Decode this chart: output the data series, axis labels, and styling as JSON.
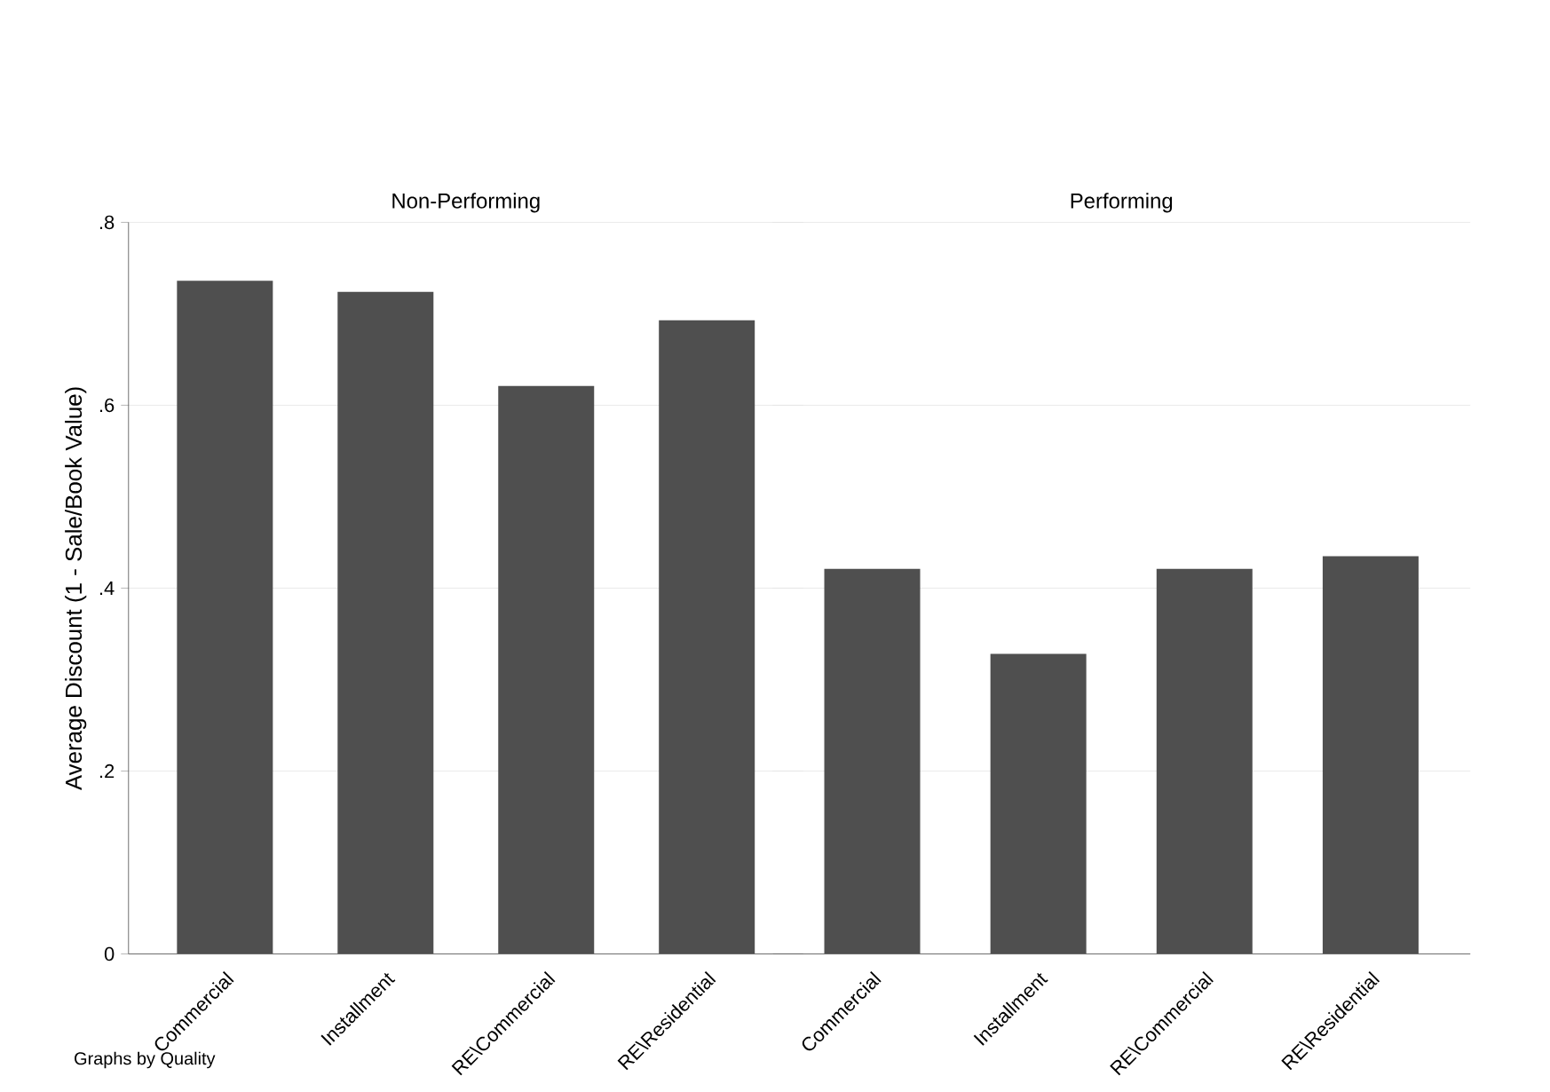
{
  "chart_data": [
    {
      "type": "bar",
      "title": "Non-Performing",
      "ylabel": "Average Discount (1 - Sale/Book Value)",
      "categories": [
        "Commercial",
        "Installment",
        "RE\\Commercial",
        "RE\\Residential"
      ],
      "values": [
        0.736,
        0.724,
        0.621,
        0.693
      ],
      "color": "#4f4f4f",
      "ylim": [
        0,
        0.8
      ],
      "yticks": [
        0,
        {
          "value": 0.2,
          "label": ".2"
        },
        {
          "value": 0.4,
          "label": ".4"
        },
        {
          "value": 0.6,
          "label": ".6"
        },
        {
          "value": 0.8,
          "label": ".8"
        }
      ],
      "grid": "y",
      "annotations": [
        "Graphs by Quality"
      ]
    },
    {
      "type": "bar",
      "title": "Performing",
      "categories": [
        "Commercial",
        "Installment",
        "RE\\Commercial",
        "RE\\Residential"
      ],
      "values": [
        0.421,
        0.328,
        0.421,
        0.435
      ],
      "color": "#4f4f4f",
      "ylim": [
        0,
        0.8
      ],
      "yticks": [
        0,
        0.2,
        0.4,
        0.6,
        0.8
      ],
      "grid": "y",
      "tick_labels": "x"
    }
  ]
}
